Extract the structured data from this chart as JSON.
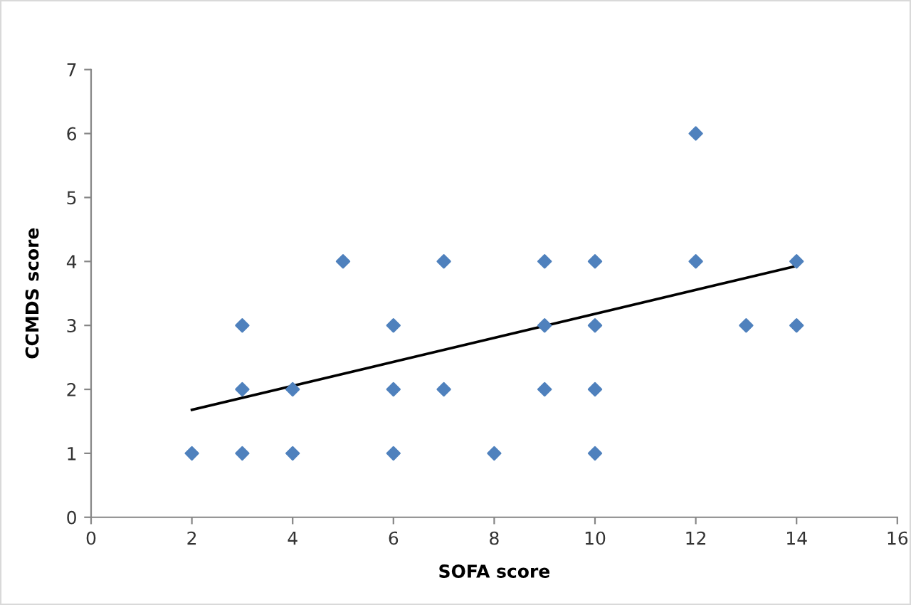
{
  "chart_data": {
    "type": "scatter",
    "xlabel": "SOFA score",
    "ylabel": "CCMDS score",
    "xlim": [
      0,
      16
    ],
    "xticks": [
      0,
      2,
      4,
      6,
      8,
      10,
      12,
      14,
      16
    ],
    "ylim": [
      0,
      7
    ],
    "yticks": [
      0,
      1,
      2,
      3,
      4,
      5,
      6,
      7
    ],
    "grid": false,
    "legend": false,
    "marker": "diamond",
    "series": [
      {
        "color": "#4f81bd",
        "x": [
          2,
          3,
          3,
          3,
          4,
          4,
          5,
          6,
          6,
          6,
          7,
          7,
          8,
          9,
          9,
          9,
          10,
          10,
          10,
          10,
          12,
          12,
          13,
          14,
          14
        ],
        "values": [
          1,
          1,
          2,
          3,
          1,
          2,
          4,
          1,
          2,
          3,
          2,
          4,
          1,
          2,
          3,
          4,
          1,
          2,
          3,
          4,
          4,
          6,
          3,
          3,
          4
        ]
      },
      {
        "type": "line",
        "color": "#000000",
        "x": [
          2,
          14
        ],
        "values": [
          1.68,
          3.93
        ],
        "marker": "none",
        "line_style": "solid"
      }
    ]
  }
}
